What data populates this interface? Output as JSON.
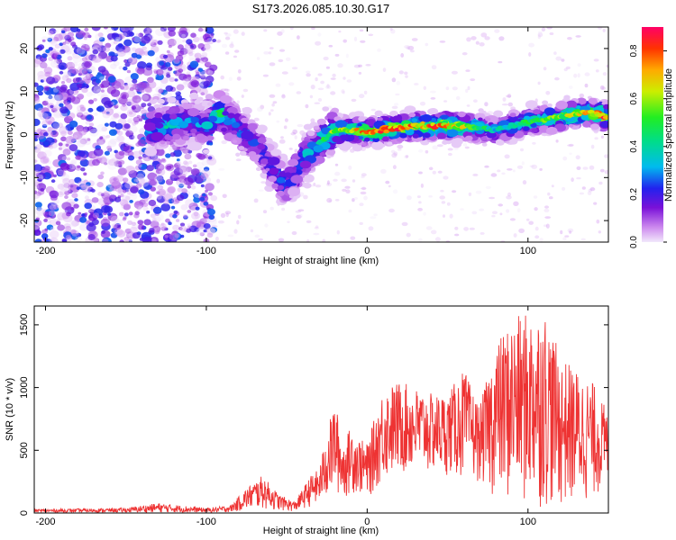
{
  "figure_title": "S173.2026.085.10.30.G17",
  "chart_data": [
    {
      "type": "heatmap",
      "xlabel": "Height of straight line (km)",
      "ylabel": "Frequency (Hz)",
      "xlim": [
        -207,
        150
      ],
      "ylim": [
        -25,
        25
      ],
      "x_ticks": [
        -200,
        -100,
        0,
        100
      ],
      "y_ticks": [
        -20,
        -10,
        0,
        10,
        20
      ],
      "colorbar": {
        "label": "Normalized spectral amplitude",
        "range": [
          0,
          0.9
        ],
        "ticks": [
          0.0,
          0.2,
          0.4,
          0.6,
          0.8
        ]
      },
      "ridge": {
        "x": [
          -135,
          -125,
          -110,
          -100,
          -92,
          -85,
          -75,
          -65,
          -55,
          -50,
          -40,
          -30,
          -20,
          -10,
          0,
          10,
          20,
          30,
          40,
          50,
          60,
          70,
          80,
          90,
          100,
          110,
          120,
          130,
          140,
          150
        ],
        "freq": [
          1,
          2,
          3,
          2,
          5,
          3,
          0,
          -4,
          -10,
          -12,
          -6,
          -2,
          1,
          1,
          0.5,
          1,
          1.5,
          2,
          2,
          2,
          2,
          1.5,
          1,
          2,
          3,
          3.5,
          4,
          5,
          5,
          4
        ],
        "amplitude": [
          0.3,
          0.4,
          0.3,
          0.3,
          0.5,
          0.4,
          0.3,
          0.25,
          0.3,
          0.3,
          0.35,
          0.45,
          0.55,
          0.6,
          0.7,
          0.75,
          0.75,
          0.7,
          0.72,
          0.72,
          0.6,
          0.45,
          0.35,
          0.4,
          0.45,
          0.5,
          0.55,
          0.6,
          0.7,
          0.75
        ]
      },
      "noise_region_x": [
        -207,
        -95
      ]
    },
    {
      "type": "line",
      "xlabel": "Height of straight line (km)",
      "ylabel": "SNR (10 * v/v)",
      "xlim": [
        -207,
        150
      ],
      "ylim": [
        0,
        1650
      ],
      "x_ticks": [
        -200,
        -100,
        0,
        100
      ],
      "y_ticks": [
        0,
        500,
        1000,
        1500
      ],
      "series": [
        {
          "name": "SNR",
          "color": "#ee3333",
          "envelope_x": [
            -207,
            -150,
            -130,
            -100,
            -85,
            -75,
            -65,
            -55,
            -45,
            -35,
            -30,
            -25,
            -20,
            -15,
            -10,
            -5,
            0,
            10,
            20,
            30,
            40,
            50,
            60,
            70,
            80,
            90,
            100,
            110,
            120,
            130,
            140,
            150
          ],
          "envelope_max": [
            30,
            40,
            80,
            40,
            60,
            200,
            300,
            150,
            90,
            300,
            350,
            650,
            900,
            550,
            700,
            600,
            550,
            1000,
            1050,
            1000,
            950,
            950,
            1150,
            850,
            1350,
            1550,
            1600,
            1650,
            1250,
            1150,
            1050,
            800
          ],
          "envelope_min": [
            5,
            5,
            5,
            5,
            5,
            20,
            30,
            20,
            10,
            50,
            60,
            100,
            150,
            100,
            150,
            150,
            100,
            250,
            300,
            300,
            300,
            300,
            250,
            250,
            100,
            50,
            30,
            30,
            30,
            50,
            100,
            200
          ]
        }
      ]
    }
  ]
}
